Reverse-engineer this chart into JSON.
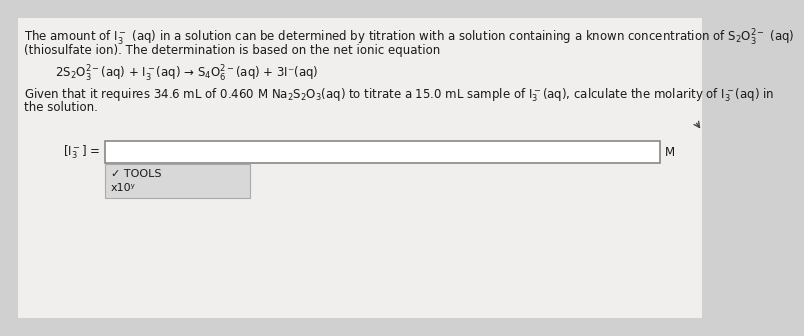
{
  "bg_color": "#d0d0d0",
  "inner_bg": "#f0efed",
  "text_color": "#1a1a1a",
  "line1": "The amount of $\\mathdefault{I_3^-}$ (aq) in a solution can be determined by titration with a solution containing a known concentration of $\\mathdefault{S_2O_3^{2-}}$ (aq)",
  "line2": "(thiosulfate ion). The determination is based on the net ionic equation",
  "equation": "    $2\\mathdefault{S_2O_3^{2-}}$(aq) + $\\mathdefault{I_3^-}$(aq) → $\\mathdefault{S_4O_6^{2-}}$(aq) + 3I⁻(aq)",
  "line3": "Given that it requires 34.6 mL of 0.460 M Na₂S₂O₃(aq) to titrate a 15.0 mL sample of $\\mathdefault{I_3^-}$(aq), calculate the molarity of $\\mathdefault{I_3^-}$(aq) in",
  "line4": "the solution.",
  "input_label": "[$\\mathdefault{I_3^-}$] =",
  "unit_label": "M",
  "tools_label": "✔ TOOLS",
  "x10_label": "x10ʸ"
}
